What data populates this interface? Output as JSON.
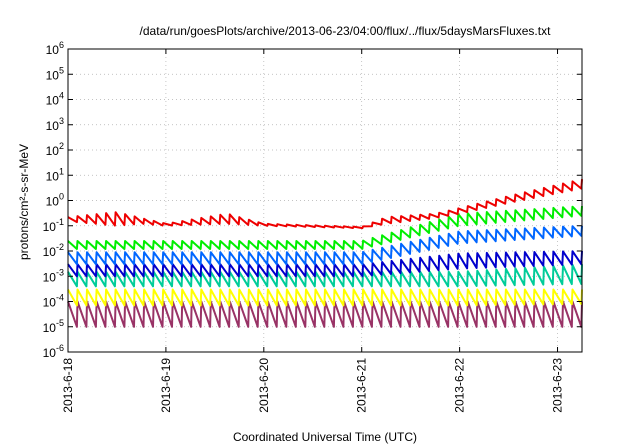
{
  "chart_data": {
    "type": "line",
    "title": "/data/run/goesPlots/archive/2013-06-23/04:00/flux/../flux/5daysMarsFluxes.txt",
    "xlabel": "Coordinated Universal Time (UTC)",
    "ylabel": "protons/cm²-s-sr-MeV",
    "y_scale": "log",
    "ylim": [
      -6,
      6
    ],
    "xlim": [
      "2013-06-18",
      "2013-06-23 06:00"
    ],
    "x_ticks": [
      "2013-6-18",
      "2013-6-19",
      "2013-6-20",
      "2013-6-21",
      "2013-6-22",
      "2013-6-23"
    ],
    "y_ticks": [
      "10-6",
      "10-5",
      "10-4",
      "10-3",
      "10-2",
      "10-1",
      "100",
      "101",
      "102",
      "103",
      "104",
      "105",
      "106"
    ],
    "grid": true,
    "legend": "none",
    "series": [
      {
        "color": "#993366",
        "x": [
          "2013-06-18 00:00",
          "2013-06-19 00:00",
          "2013-06-20 00:00",
          "2013-06-21 00:00",
          "2013-06-22 00:00",
          "2013-06-23 06:00"
        ],
        "peak": [
          0.0001,
          0.0001,
          0.0001,
          0.0001,
          0.0001,
          0.0001
        ],
        "trough": [
          1e-05,
          1e-05,
          1e-05,
          1e-05,
          1e-05,
          1e-05
        ]
      },
      {
        "color": "#ffff00",
        "x": [
          "2013-06-18 00:00",
          "2013-06-19 00:00",
          "2013-06-20 00:00",
          "2013-06-21 00:00",
          "2013-06-22 00:00",
          "2013-06-23 06:00"
        ],
        "peak": [
          0.0003,
          0.0003,
          0.0003,
          0.0003,
          0.0003,
          0.0003
        ],
        "trough": [
          7e-05,
          7e-05,
          7e-05,
          7e-05,
          7e-05,
          8e-05
        ]
      },
      {
        "color": "#00cc99",
        "x": [
          "2013-06-18 00:00",
          "2013-06-19 00:00",
          "2013-06-20 00:00",
          "2013-06-21 00:00",
          "2013-06-22 00:00",
          "2013-06-23 06:00"
        ],
        "peak": [
          0.0015,
          0.0015,
          0.0015,
          0.0015,
          0.0015,
          0.003
        ],
        "trough": [
          0.0004,
          0.0004,
          0.0004,
          0.0004,
          0.0004,
          0.0005
        ]
      },
      {
        "color": "#0000cc",
        "x": [
          "2013-06-18 00:00",
          "2013-06-19 00:00",
          "2013-06-20 00:00",
          "2013-06-21 00:00",
          "2013-06-22 00:00",
          "2013-06-23 06:00"
        ],
        "peak": [
          0.003,
          0.003,
          0.003,
          0.003,
          0.008,
          0.01
        ],
        "trough": [
          0.001,
          0.001,
          0.001,
          0.001,
          0.002,
          0.003
        ]
      },
      {
        "color": "#0066ff",
        "x": [
          "2013-06-18 00:00",
          "2013-06-19 00:00",
          "2013-06-20 00:00",
          "2013-06-21 00:00",
          "2013-06-22 00:00",
          "2013-06-23 06:00"
        ],
        "peak": [
          0.009,
          0.009,
          0.009,
          0.009,
          0.06,
          0.1
        ],
        "trough": [
          0.003,
          0.003,
          0.003,
          0.003,
          0.02,
          0.04
        ]
      },
      {
        "color": "#00ee00",
        "x": [
          "2013-06-18 00:00",
          "2013-06-19 00:00",
          "2013-06-20 00:00",
          "2013-06-21 00:00",
          "2013-06-22 00:00",
          "2013-06-23 06:00"
        ],
        "peak": [
          0.025,
          0.025,
          0.025,
          0.025,
          0.3,
          0.6
        ],
        "trough": [
          0.012,
          0.012,
          0.012,
          0.012,
          0.1,
          0.25
        ]
      },
      {
        "color": "#ee0000",
        "x": [
          "2013-06-18 00:00",
          "2013-06-18 12:00",
          "2013-06-18 18:00",
          "2013-06-19 00:00",
          "2013-06-19 15:00",
          "2013-06-20 00:00",
          "2013-06-21 00:00",
          "2013-06-21 06:00",
          "2013-06-21 18:00",
          "2013-06-22 00:00",
          "2013-06-22 12:00",
          "2013-06-23 06:00"
        ],
        "peak": [
          0.22,
          0.35,
          0.2,
          0.12,
          0.3,
          0.12,
          0.09,
          0.22,
          0.3,
          0.5,
          1.5,
          7
        ],
        "trough": [
          0.15,
          0.1,
          0.12,
          0.1,
          0.12,
          0.1,
          0.08,
          0.12,
          0.2,
          0.3,
          0.8,
          3
        ]
      }
    ]
  }
}
